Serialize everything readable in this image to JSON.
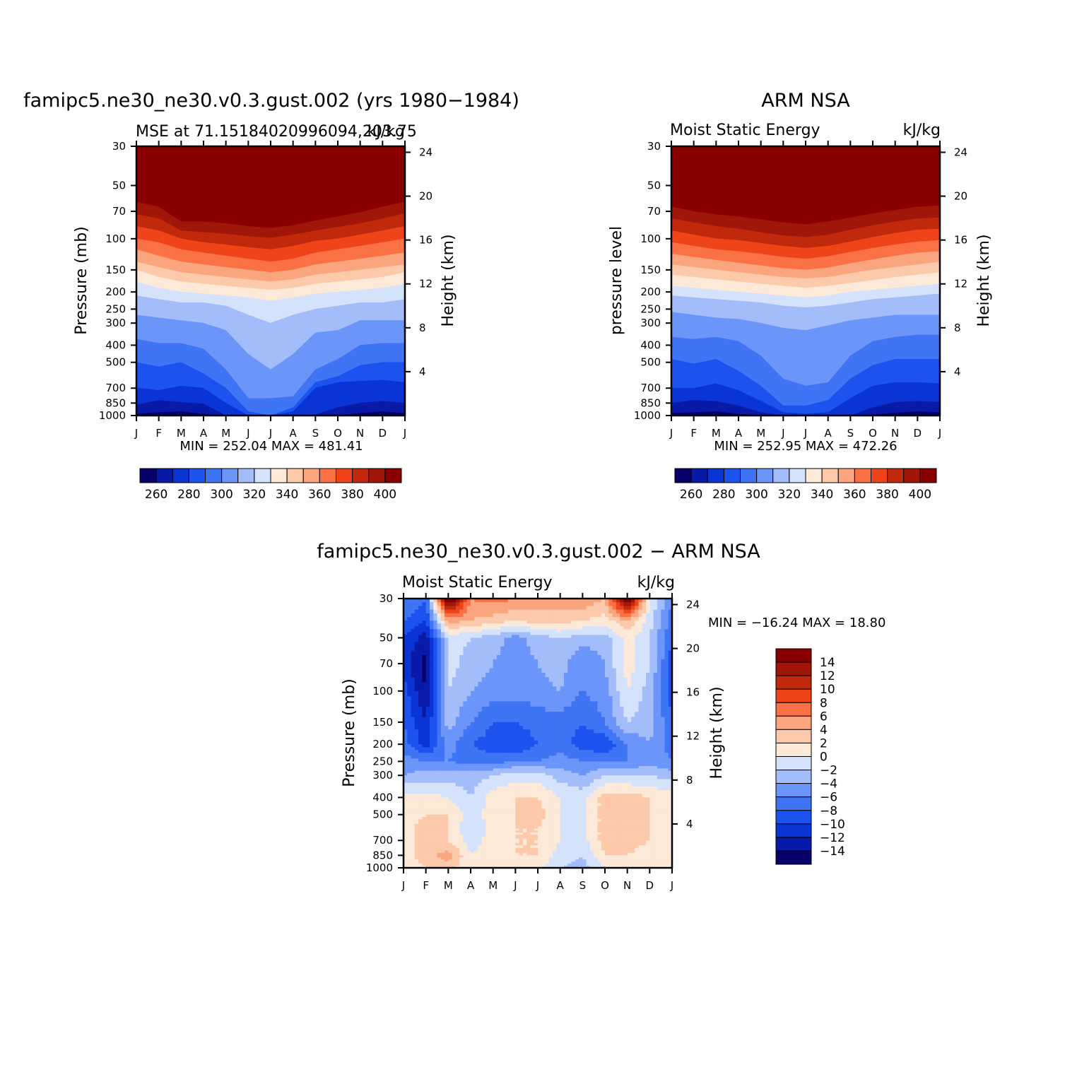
{
  "chart_data": [
    {
      "type": "heatmap",
      "id": "model",
      "title": "famipc5.ne30_ne30.v0.3.gust.002 (yrs 1980−1984)",
      "left_label": "MSE at 71.15184020996094,203.75",
      "right_label": "kJ/kg",
      "ylabel": "Pressure (mb)",
      "y2label": "Height (km)",
      "minmax_text": "MIN = 252.04 MAX = 481.41",
      "x_ticks": [
        "J",
        "F",
        "M",
        "A",
        "M",
        "J",
        "J",
        "A",
        "S",
        "O",
        "N",
        "D",
        "J"
      ],
      "y_ticks": [
        30,
        50,
        70,
        100,
        150,
        200,
        250,
        300,
        400,
        500,
        700,
        850,
        1000
      ],
      "y2_ticks": [
        24,
        20,
        16,
        12,
        8,
        4
      ],
      "ylim": [
        30,
        1000
      ],
      "levels": [
        260,
        270,
        280,
        290,
        300,
        310,
        320,
        330,
        340,
        350,
        360,
        370,
        380,
        390,
        400
      ],
      "colorbar_labels": [
        260,
        280,
        300,
        320,
        340,
        360,
        380,
        400
      ],
      "boundaries_pressure": {
        "b260": [
          1000,
          990,
          995,
          995,
          1000,
          1000,
          1000,
          1000,
          1000,
          1000,
          1000,
          995,
          990
        ],
        "b270": [
          980,
          960,
          950,
          980,
          1000,
          1000,
          1000,
          1000,
          1000,
          1000,
          970,
          950,
          970
        ],
        "b280": [
          870,
          820,
          840,
          860,
          1000,
          1000,
          1000,
          1000,
          990,
          900,
          850,
          830,
          850
        ],
        "b290": [
          700,
          720,
          680,
          700,
          850,
          1000,
          1000,
          950,
          700,
          650,
          640,
          630,
          650
        ],
        "b300": [
          500,
          530,
          500,
          580,
          700,
          950,
          1000,
          900,
          650,
          600,
          520,
          500,
          500
        ],
        "b310": [
          370,
          390,
          390,
          420,
          550,
          800,
          800,
          780,
          550,
          480,
          400,
          390,
          390
        ],
        "b320": [
          270,
          280,
          290,
          300,
          330,
          450,
          550,
          450,
          340,
          330,
          290,
          290,
          290
        ],
        "b330": [
          210,
          220,
          230,
          230,
          240,
          270,
          300,
          270,
          250,
          240,
          230,
          230,
          220
        ],
        "b340": [
          175,
          190,
          200,
          205,
          210,
          215,
          225,
          215,
          205,
          200,
          195,
          190,
          180
        ],
        "b350": [
          150,
          165,
          175,
          180,
          185,
          190,
          195,
          190,
          180,
          175,
          170,
          165,
          155
        ],
        "b360": [
          135,
          145,
          155,
          160,
          165,
          170,
          175,
          170,
          160,
          155,
          150,
          145,
          140
        ],
        "b370": [
          115,
          125,
          135,
          140,
          145,
          150,
          155,
          150,
          140,
          135,
          130,
          125,
          120
        ],
        "b380": [
          100,
          105,
          115,
          120,
          125,
          130,
          135,
          130,
          120,
          115,
          110,
          105,
          100
        ],
        "b390": [
          85,
          90,
          100,
          105,
          108,
          112,
          115,
          110,
          103,
          100,
          95,
          90,
          85
        ],
        "b400": [
          73,
          77,
          90,
          92,
          94,
          97,
          99,
          95,
          90,
          86,
          82,
          77,
          72
        ],
        "b410": [
          62,
          66,
          80,
          80,
          82,
          85,
          87,
          84,
          79,
          75,
          71,
          66,
          62
        ]
      }
    },
    {
      "type": "heatmap",
      "id": "obs",
      "title": "ARM NSA",
      "left_label": "Moist Static Energy",
      "right_label": "kJ/kg",
      "ylabel": "pressure level",
      "y2label": "Height (km)",
      "minmax_text": "MIN = 252.95 MAX = 472.26",
      "x_ticks": [
        "J",
        "F",
        "M",
        "A",
        "M",
        "J",
        "J",
        "A",
        "S",
        "O",
        "N",
        "D",
        "J"
      ],
      "y_ticks": [
        30,
        50,
        70,
        100,
        150,
        200,
        250,
        300,
        400,
        500,
        700,
        850,
        1000
      ],
      "y2_ticks": [
        24,
        20,
        16,
        12,
        8,
        4
      ],
      "ylim": [
        30,
        1000
      ],
      "levels": [
        260,
        270,
        280,
        290,
        300,
        310,
        320,
        330,
        340,
        350,
        360,
        370,
        380,
        390,
        400
      ],
      "colorbar_labels": [
        260,
        280,
        300,
        320,
        340,
        360,
        380,
        400
      ],
      "boundaries_pressure": {
        "b260": [
          1000,
          985,
          985,
          995,
          1000,
          1000,
          1000,
          1000,
          1000,
          1000,
          1000,
          990,
          985
        ],
        "b270": [
          970,
          960,
          950,
          980,
          1000,
          1000,
          1000,
          1000,
          1000,
          990,
          965,
          950,
          960
        ],
        "b280": [
          850,
          820,
          830,
          880,
          960,
          1000,
          1000,
          1000,
          1000,
          900,
          840,
          830,
          840
        ],
        "b290": [
          700,
          700,
          660,
          720,
          830,
          960,
          980,
          960,
          800,
          680,
          650,
          650,
          660
        ],
        "b300": [
          480,
          510,
          480,
          560,
          680,
          880,
          880,
          820,
          620,
          520,
          480,
          480,
          480
        ],
        "b310": [
          360,
          370,
          360,
          380,
          460,
          620,
          680,
          650,
          460,
          380,
          360,
          350,
          350
        ],
        "b320": [
          260,
          270,
          280,
          285,
          300,
          320,
          330,
          310,
          290,
          280,
          270,
          270,
          270
        ],
        "b330": [
          210,
          215,
          220,
          225,
          230,
          240,
          245,
          240,
          230,
          220,
          215,
          210,
          205
        ],
        "b340": [
          185,
          190,
          195,
          200,
          205,
          210,
          215,
          210,
          200,
          195,
          190,
          185,
          180
        ],
        "b350": [
          160,
          165,
          170,
          175,
          180,
          185,
          190,
          185,
          178,
          172,
          165,
          160,
          155
        ],
        "b360": [
          140,
          145,
          150,
          155,
          160,
          165,
          168,
          165,
          157,
          150,
          145,
          140,
          135
        ],
        "b370": [
          122,
          127,
          132,
          137,
          142,
          147,
          150,
          146,
          138,
          131,
          125,
          120,
          118
        ],
        "b380": [
          105,
          110,
          115,
          118,
          122,
          127,
          130,
          126,
          119,
          113,
          108,
          104,
          102
        ],
        "b390": [
          90,
          95,
          100,
          102,
          106,
          110,
          113,
          110,
          104,
          98,
          93,
          89,
          88
        ],
        "b400": [
          77,
          81,
          85,
          88,
          92,
          96,
          98,
          95,
          89,
          84,
          80,
          77,
          76
        ],
        "b410": [
          66,
          70,
          73,
          75,
          78,
          81,
          83,
          80,
          76,
          72,
          69,
          66,
          65
        ]
      }
    },
    {
      "type": "heatmap",
      "id": "diff",
      "title": "famipc5.ne30_ne30.v0.3.gust.002 − ARM NSA",
      "left_label": "Moist Static Energy",
      "right_label": "kJ/kg",
      "ylabel": "Pressure (mb)",
      "y2label": "Height (km)",
      "minmax_text": "MIN = −16.24 MAX =   18.80",
      "x_ticks": [
        "J",
        "F",
        "M",
        "A",
        "M",
        "J",
        "J",
        "A",
        "S",
        "O",
        "N",
        "D",
        "J"
      ],
      "y_ticks": [
        30,
        50,
        70,
        100,
        150,
        200,
        250,
        300,
        400,
        500,
        700,
        850,
        1000
      ],
      "y2_ticks": [
        24,
        20,
        16,
        12,
        8,
        4
      ],
      "ylim": [
        30,
        1000
      ],
      "levels": [
        -14,
        -12,
        -10,
        -8,
        -6,
        -4,
        -2,
        0,
        2,
        4,
        6,
        8,
        10,
        12,
        14
      ],
      "colorbar_labels": [
        "14",
        "12",
        "10",
        "8",
        "6",
        "4",
        "2",
        "0",
        "−2",
        "−4",
        "−6",
        "−8",
        "−10",
        "−12",
        "−14"
      ],
      "pressure_grid": [
        30,
        40,
        50,
        70,
        100,
        150,
        200,
        250,
        300,
        400,
        500,
        600,
        700,
        850,
        1000
      ],
      "values": [
        [
          -6,
          -8,
          18,
          6,
          7,
          6,
          5,
          5,
          6,
          4,
          18,
          0,
          -6
        ],
        [
          -8,
          -10,
          5,
          4,
          3,
          2,
          3,
          3,
          2,
          1,
          4,
          -1,
          -7
        ],
        [
          -10,
          -13,
          -1,
          -2,
          -3,
          -5,
          -3,
          -2,
          -3,
          -3,
          1,
          -2,
          -8
        ],
        [
          -11,
          -15,
          -1,
          -3,
          -4,
          -5,
          -4,
          -3,
          -6,
          -4,
          1,
          -2,
          -9
        ],
        [
          -9,
          -14,
          -2,
          -4,
          -5,
          -5,
          -5,
          -4,
          -6,
          -5,
          0,
          -3,
          -9
        ],
        [
          -8,
          -12,
          -3,
          -6,
          -8,
          -8,
          -7,
          -7,
          -8,
          -6,
          -2,
          -3,
          -8
        ],
        [
          -7,
          -11,
          -5,
          -8,
          -9,
          -10,
          -8,
          -7,
          -9,
          -10,
          -6,
          -4,
          -7
        ],
        [
          -5,
          -6,
          -6,
          -7,
          -7,
          -6,
          -6,
          -5,
          -6,
          -6,
          -6,
          -5,
          -6
        ],
        [
          -4,
          -3,
          -3,
          -3,
          -2,
          -1,
          -1,
          -3,
          -4,
          -2,
          -2,
          -2,
          -3
        ],
        [
          1,
          1,
          0,
          -2,
          1,
          2,
          2,
          0,
          -1,
          3,
          3,
          2,
          1
        ],
        [
          1,
          2,
          2,
          -1,
          1,
          2,
          3,
          0,
          -1,
          3,
          3,
          2,
          1
        ],
        [
          1,
          3,
          2,
          -2,
          1,
          2,
          2,
          0,
          -1,
          3,
          3,
          2,
          1
        ],
        [
          1,
          3,
          2,
          -1,
          1,
          2,
          2,
          0,
          -1,
          3,
          3,
          2,
          1
        ],
        [
          1,
          3,
          5,
          0,
          1,
          2,
          2,
          -1,
          -2,
          2,
          2,
          1,
          1
        ],
        [
          1,
          2,
          3,
          0,
          0,
          1,
          1,
          -2,
          -3,
          0,
          0,
          0,
          1
        ]
      ]
    }
  ],
  "colors": {
    "cool_to_warm": [
      "#08006a",
      "#0a1aa8",
      "#0a34d4",
      "#1c52ee",
      "#3f74f5",
      "#6b95f9",
      "#a3bcfa",
      "#d5e2fc",
      "#fde9d8",
      "#fcc9ab",
      "#fba57f",
      "#fa7146",
      "#ef4319",
      "#c0290c",
      "#a01608",
      "#8a0000"
    ]
  }
}
